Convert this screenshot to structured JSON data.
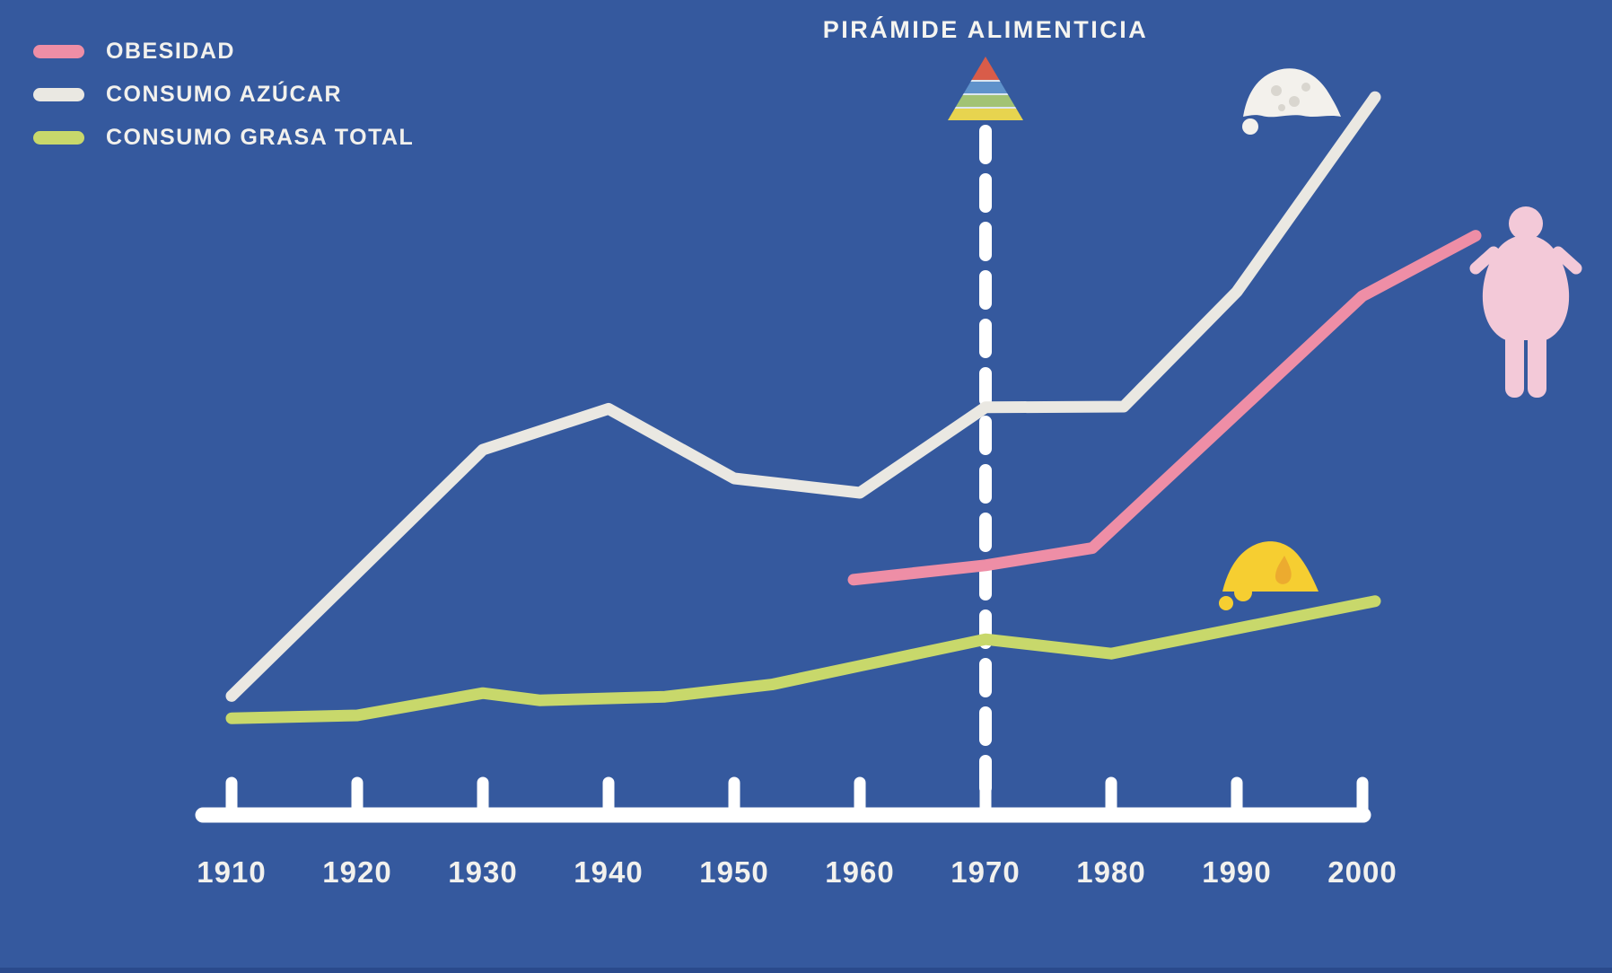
{
  "title": "PIRÁMIDE ALIMENTICIA",
  "legend": {
    "items": [
      {
        "label": "OBESIDAD",
        "color": "#EE8EA6"
      },
      {
        "label": "CONSUMO AZÚCAR",
        "color": "#EAE8E2"
      },
      {
        "label": "CONSUMO GRASA TOTAL",
        "color": "#C8D86B"
      }
    ]
  },
  "colors": {
    "background": "#35599E",
    "axis": "#FFFFFF",
    "tick_label": "#F2F1ED",
    "dashed_annotation_line": "#FFFFFF",
    "obesity_line": "#EE8EA6",
    "sugar_line": "#EAE8E2",
    "fat_line": "#C8D86B",
    "sugar_pile_icon": "#F3F1EC",
    "fat_pile_icon": "#F6CE31",
    "fat_droplet": "#ECAB2F",
    "obese_person_icon": "#F3C9D8",
    "pyramid_red": "#D95C49",
    "pyramid_blue": "#5F92CB",
    "pyramid_green": "#A2C374",
    "pyramid_yellow": "#E7D44F"
  },
  "icons": {
    "pyramid": "food-pyramid-icon",
    "sugar": "sugar-pile-icon",
    "fat": "butter-pile-icon",
    "person": "obese-person-icon"
  },
  "chart_data": {
    "type": "line",
    "title": "PIRÁMIDE ALIMENTICIA",
    "xlabel": "",
    "ylabel": "",
    "units": "relative index (no y-axis shown in figure)",
    "grid": false,
    "legend_position": "top-left",
    "x_ticks": [
      1910,
      1920,
      1930,
      1940,
      1950,
      1960,
      1970,
      1980,
      1990,
      2000
    ],
    "xlim": [
      1905,
      2012
    ],
    "ylim": [
      0,
      105
    ],
    "annotation": {
      "label": "PIRÁMIDE ALIMENTICIA",
      "x": 1970,
      "style": "dashed-vertical-line"
    },
    "series": [
      {
        "name": "OBESIDAD",
        "color": "#EE8EA6",
        "points": [
          [
            1959.5,
            32.4
          ],
          [
            1970,
            34.4
          ],
          [
            1978.5,
            36.8
          ],
          [
            2000,
            71.9
          ],
          [
            2009,
            80.3
          ]
        ]
      },
      {
        "name": "CONSUMO AZÚCAR",
        "color": "#EAE8E2",
        "points": [
          [
            1910,
            16.2
          ],
          [
            1930,
            50.5
          ],
          [
            1940,
            56.2
          ],
          [
            1950,
            46.5
          ],
          [
            1960,
            44.5
          ],
          [
            1970,
            56.4
          ],
          [
            1981,
            56.5
          ],
          [
            1990,
            72.5
          ],
          [
            2001,
            99.6
          ]
        ]
      },
      {
        "name": "CONSUMO GRASA TOTAL",
        "color": "#C8D86B",
        "points": [
          [
            1910,
            13.1
          ],
          [
            1920,
            13.5
          ],
          [
            1930,
            16.6
          ],
          [
            1934.5,
            15.6
          ],
          [
            1944.5,
            16.1
          ],
          [
            1953,
            17.8
          ],
          [
            1960,
            20.4
          ],
          [
            1970,
            24.1
          ],
          [
            1980,
            22.1
          ],
          [
            1990,
            25.6
          ],
          [
            2001,
            29.4
          ]
        ]
      }
    ]
  }
}
